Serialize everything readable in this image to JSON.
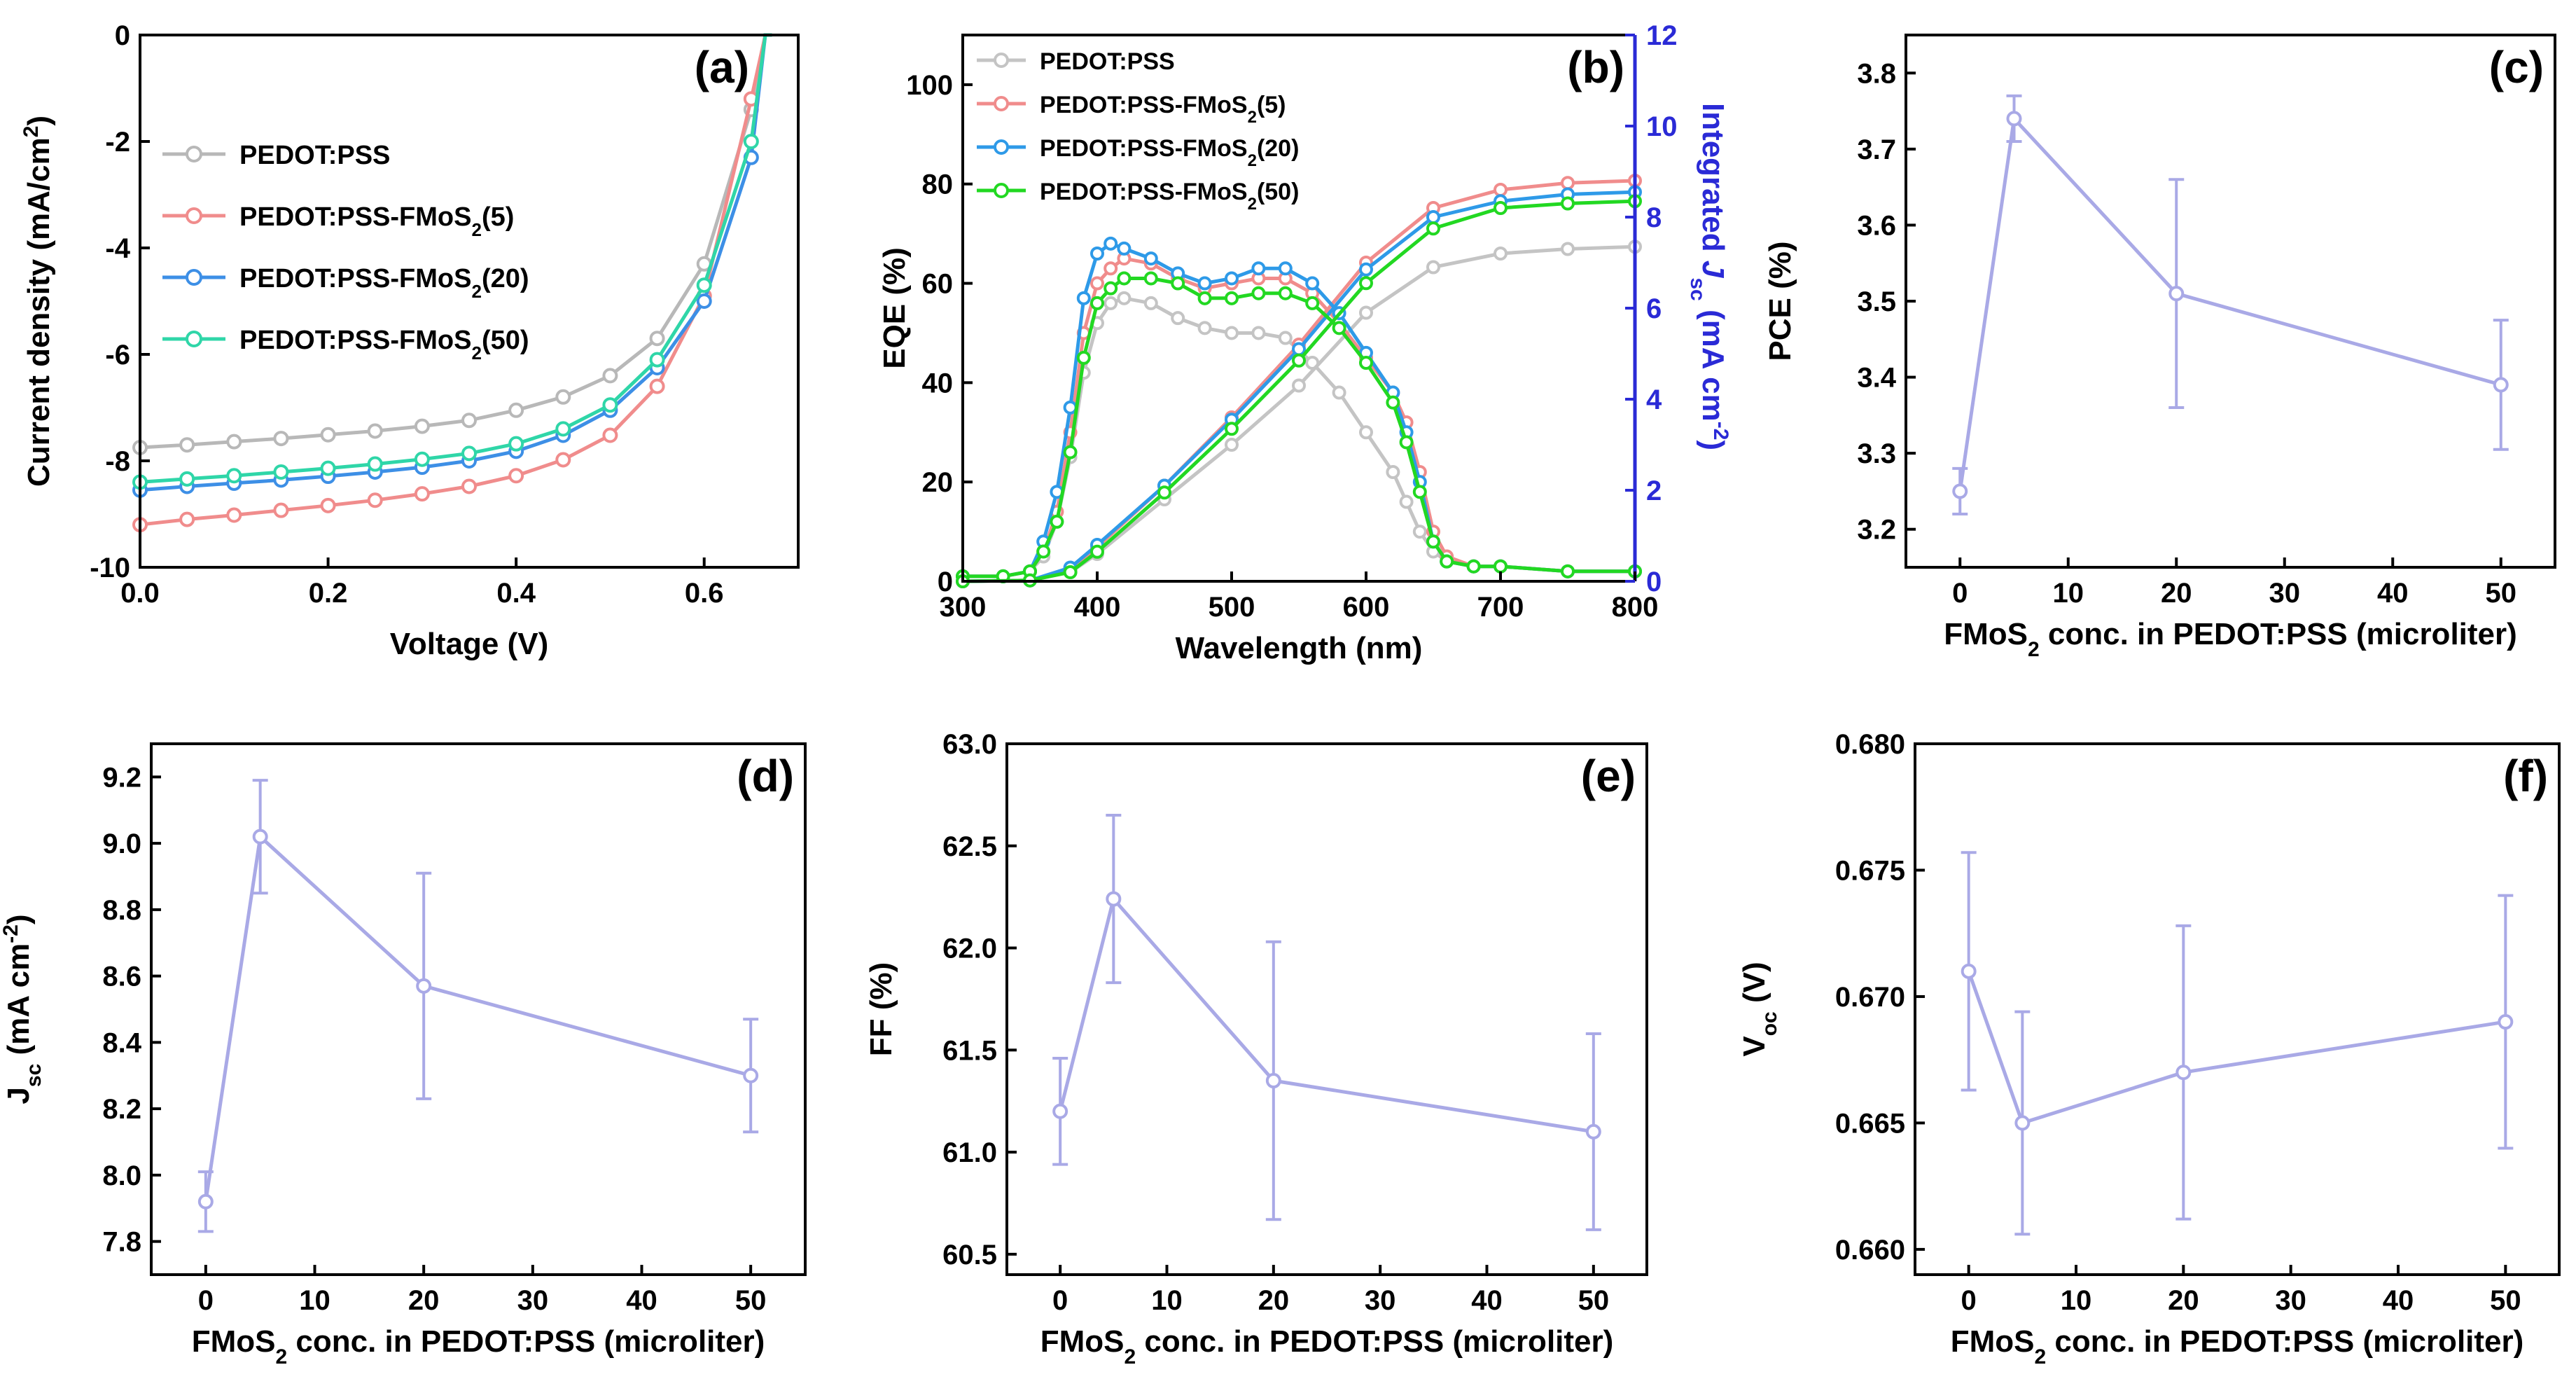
{
  "chart_data": [
    {
      "id": "a",
      "type": "line",
      "panel_label": "(a)",
      "xlabel": "Voltage (V)",
      "ylabel": "Current density (mA/cm²)",
      "xlim": [
        0,
        0.7
      ],
      "ylim": [
        -10,
        0
      ],
      "xticks": [
        0.0,
        0.2,
        0.4,
        0.6
      ],
      "xtick_labels": [
        "0.0",
        "0.2",
        "0.4",
        "0.6"
      ],
      "yticks": [
        -10,
        -8,
        -6,
        -4,
        -2,
        0
      ],
      "ytick_labels": [
        "-10",
        "-8",
        "-6",
        "-4",
        "-2",
        "0"
      ],
      "legend_position": "upper-left",
      "x": [
        0.0,
        0.05,
        0.1,
        0.15,
        0.2,
        0.25,
        0.3,
        0.35,
        0.4,
        0.45,
        0.5,
        0.55,
        0.6,
        0.65
      ],
      "series": [
        {
          "name": "PEDOT:PSS",
          "name_main": "PEDOT:PSS",
          "name_sub": "",
          "name_tail": "",
          "color": "#b8b8b8",
          "values": [
            -7.75,
            -7.7,
            -7.64,
            -7.58,
            -7.51,
            -7.44,
            -7.35,
            -7.24,
            -7.05,
            -6.8,
            -6.4,
            -5.7,
            -4.3,
            -1.4
          ]
        },
        {
          "name": "PEDOT:PSS-FMoS2(5)",
          "name_main": "PEDOT:PSS-FMoS",
          "name_sub": "2",
          "name_tail": "(5)",
          "color": "#f08c8c",
          "values": [
            -9.2,
            -9.1,
            -9.02,
            -8.93,
            -8.84,
            -8.74,
            -8.62,
            -8.48,
            -8.28,
            -7.98,
            -7.52,
            -6.6,
            -4.9,
            -1.2
          ]
        },
        {
          "name": "PEDOT:PSS-FMoS2(20)",
          "name_main": "PEDOT:PSS-FMoS",
          "name_sub": "2",
          "name_tail": "(20)",
          "color": "#3d8fe6",
          "values": [
            -8.55,
            -8.48,
            -8.42,
            -8.36,
            -8.29,
            -8.21,
            -8.12,
            -8.0,
            -7.82,
            -7.52,
            -7.05,
            -6.25,
            -5.0,
            -2.3
          ]
        },
        {
          "name": "PEDOT:PSS-FMoS2(50)",
          "name_main": "PEDOT:PSS-FMoS",
          "name_sub": "2",
          "name_tail": "(50)",
          "color": "#2fd6a8",
          "values": [
            -8.4,
            -8.34,
            -8.28,
            -8.21,
            -8.14,
            -8.06,
            -7.97,
            -7.86,
            -7.68,
            -7.4,
            -6.95,
            -6.1,
            -4.7,
            -2.0
          ]
        }
      ]
    },
    {
      "id": "b",
      "type": "line",
      "panel_label": "(b)",
      "xlabel": "Wavelength (nm)",
      "ylabel": "EQE (%)",
      "y2label": "Integrated J_sc (mA cm⁻²)",
      "y2label_parts": {
        "pre": "Integrated ",
        "j": "J",
        "sub": "sc",
        "post": " (mA cm",
        "sup": "-2",
        "close": ")"
      },
      "xlim": [
        300,
        800
      ],
      "ylim": [
        0,
        110
      ],
      "y2lim": [
        0,
        12
      ],
      "xticks": [
        300,
        400,
        500,
        600,
        700,
        800
      ],
      "xtick_labels": [
        "300",
        "400",
        "500",
        "600",
        "700",
        "800"
      ],
      "yticks": [
        0,
        20,
        40,
        60,
        80,
        100
      ],
      "ytick_labels": [
        "0",
        "20",
        "40",
        "60",
        "80",
        "100"
      ],
      "y2ticks": [
        0,
        2,
        4,
        6,
        8,
        10,
        12
      ],
      "y2tick_labels": [
        "0",
        "2",
        "4",
        "6",
        "8",
        "10",
        "12"
      ],
      "legend_position": "top-left",
      "series": [
        {
          "name": "PEDOT:PSS",
          "name_main": "PEDOT:PSS",
          "name_sub": "",
          "name_tail": "",
          "color": "#c4c4c4",
          "eqe_x": [
            300,
            330,
            350,
            360,
            370,
            380,
            390,
            400,
            410,
            420,
            440,
            460,
            480,
            500,
            520,
            540,
            560,
            580,
            600,
            620,
            630,
            640,
            650,
            660,
            680,
            700,
            750,
            800
          ],
          "eqe_y": [
            1,
            1,
            2,
            5,
            12,
            25,
            42,
            52,
            56,
            57,
            56,
            53,
            51,
            50,
            50,
            49,
            44,
            38,
            30,
            22,
            16,
            10,
            6,
            4,
            3,
            3,
            2,
            2
          ],
          "jsc_x": [
            300,
            350,
            380,
            400,
            450,
            500,
            550,
            600,
            650,
            700,
            750,
            800
          ],
          "jsc_y": [
            0,
            0.02,
            0.2,
            0.6,
            1.8,
            3.0,
            4.3,
            5.9,
            6.9,
            7.2,
            7.3,
            7.35
          ]
        },
        {
          "name": "PEDOT:PSS-FMoS2(5)",
          "name_main": "PEDOT:PSS-FMoS",
          "name_sub": "2",
          "name_tail": "(5)",
          "color": "#f08c8c",
          "eqe_x": [
            300,
            330,
            350,
            360,
            370,
            380,
            390,
            400,
            410,
            420,
            440,
            460,
            480,
            500,
            520,
            540,
            560,
            580,
            600,
            620,
            630,
            640,
            650,
            660,
            680,
            700,
            750,
            800
          ],
          "eqe_y": [
            1,
            1,
            2,
            6,
            14,
            30,
            50,
            60,
            63,
            65,
            64,
            61,
            59,
            60,
            61,
            61,
            58,
            52,
            45,
            38,
            32,
            22,
            10,
            5,
            3,
            3,
            2,
            2
          ],
          "jsc_x": [
            300,
            350,
            380,
            400,
            450,
            500,
            550,
            600,
            650,
            700,
            750,
            800
          ],
          "jsc_y": [
            0,
            0.02,
            0.25,
            0.75,
            2.1,
            3.6,
            5.2,
            7.0,
            8.2,
            8.6,
            8.75,
            8.8
          ]
        },
        {
          "name": "PEDOT:PSS-FMoS2(20)",
          "name_main": "PEDOT:PSS-FMoS",
          "name_sub": "2",
          "name_tail": "(20)",
          "color": "#2e9ae8",
          "eqe_x": [
            300,
            330,
            350,
            360,
            370,
            380,
            390,
            400,
            410,
            420,
            440,
            460,
            480,
            500,
            520,
            540,
            560,
            580,
            600,
            620,
            630,
            640,
            650,
            660,
            680,
            700,
            750,
            800
          ],
          "eqe_y": [
            1,
            1,
            2,
            8,
            18,
            35,
            57,
            66,
            68,
            67,
            65,
            62,
            60,
            61,
            63,
            63,
            60,
            54,
            46,
            38,
            30,
            20,
            8,
            4,
            3,
            3,
            2,
            2
          ],
          "jsc_x": [
            300,
            350,
            380,
            400,
            450,
            500,
            550,
            600,
            650,
            700,
            750,
            800
          ],
          "jsc_y": [
            0,
            0.02,
            0.3,
            0.8,
            2.1,
            3.55,
            5.1,
            6.85,
            8.0,
            8.35,
            8.5,
            8.55
          ]
        },
        {
          "name": "PEDOT:PSS-FMoS2(50)",
          "name_main": "PEDOT:PSS-FMoS",
          "name_sub": "2",
          "name_tail": "(50)",
          "color": "#22d822",
          "eqe_x": [
            300,
            330,
            350,
            360,
            370,
            380,
            390,
            400,
            410,
            420,
            440,
            460,
            480,
            500,
            520,
            540,
            560,
            580,
            600,
            620,
            630,
            640,
            650,
            660,
            680,
            700,
            750,
            800
          ],
          "eqe_y": [
            1,
            1,
            2,
            6,
            12,
            26,
            45,
            56,
            59,
            61,
            61,
            60,
            57,
            57,
            58,
            58,
            56,
            51,
            44,
            36,
            28,
            18,
            8,
            4,
            3,
            3,
            2,
            2
          ],
          "jsc_x": [
            300,
            350,
            380,
            400,
            450,
            500,
            550,
            600,
            650,
            700,
            750,
            800
          ],
          "jsc_y": [
            0,
            0.02,
            0.2,
            0.65,
            1.95,
            3.35,
            4.85,
            6.55,
            7.75,
            8.2,
            8.3,
            8.35
          ]
        }
      ]
    },
    {
      "id": "c",
      "type": "line",
      "panel_label": "(c)",
      "xlabel": "FMoS2 conc. in PEDOT:PSS (microliter)",
      "xlabel_parts": {
        "pre": "FMoS",
        "sub": "2",
        "post": " conc. in PEDOT:PSS (microliter)"
      },
      "ylabel": "PCE (%)",
      "xlim": [
        -5,
        55
      ],
      "ylim": [
        3.15,
        3.85
      ],
      "xticks": [
        0,
        10,
        20,
        30,
        40,
        50
      ],
      "xtick_labels": [
        "0",
        "10",
        "20",
        "30",
        "40",
        "50"
      ],
      "yticks": [
        3.2,
        3.3,
        3.4,
        3.5,
        3.6,
        3.7,
        3.8
      ],
      "ytick_labels": [
        "3.2",
        "3.3",
        "3.4",
        "3.5",
        "3.6",
        "3.7",
        "3.8"
      ],
      "color": "#a9a9e6",
      "x": [
        0,
        5,
        20,
        50
      ],
      "values": [
        3.25,
        3.74,
        3.51,
        3.39
      ],
      "errors": [
        0.03,
        0.03,
        0.15,
        0.085
      ]
    },
    {
      "id": "d",
      "type": "line",
      "panel_label": "(d)",
      "xlabel": "FMoS2 conc. in PEDOT:PSS (microliter)",
      "xlabel_parts": {
        "pre": "FMoS",
        "sub": "2",
        "post": " conc. in PEDOT:PSS (microliter)"
      },
      "ylabel": "Jsc (mA cm-2)",
      "ylabel_parts": {
        "j": "J",
        "sub": "sc",
        "post": " (mA cm",
        "sup": "-2",
        "close": ")"
      },
      "xlim": [
        -5,
        55
      ],
      "ylim": [
        7.7,
        9.3
      ],
      "xticks": [
        0,
        10,
        20,
        30,
        40,
        50
      ],
      "xtick_labels": [
        "0",
        "10",
        "20",
        "30",
        "40",
        "50"
      ],
      "yticks": [
        7.8,
        8.0,
        8.2,
        8.4,
        8.6,
        8.8,
        9.0,
        9.2
      ],
      "ytick_labels": [
        "7.8",
        "8.0",
        "8.2",
        "8.4",
        "8.6",
        "8.8",
        "9.0",
        "9.2"
      ],
      "color": "#a9a9e6",
      "x": [
        0,
        5,
        20,
        50
      ],
      "values": [
        7.92,
        9.02,
        8.57,
        8.3
      ],
      "errors": [
        0.09,
        0.17,
        0.34,
        0.17
      ]
    },
    {
      "id": "e",
      "type": "line",
      "panel_label": "(e)",
      "xlabel": "FMoS2 conc. in PEDOT:PSS (microliter)",
      "xlabel_parts": {
        "pre": "FMoS",
        "sub": "2",
        "post": " conc. in PEDOT:PSS (microliter)"
      },
      "ylabel": "FF (%)",
      "xlim": [
        -5,
        55
      ],
      "ylim": [
        60.4,
        63.0
      ],
      "xticks": [
        0,
        10,
        20,
        30,
        40,
        50
      ],
      "xtick_labels": [
        "0",
        "10",
        "20",
        "30",
        "40",
        "50"
      ],
      "yticks": [
        60.5,
        61.0,
        61.5,
        62.0,
        62.5,
        63.0
      ],
      "ytick_labels": [
        "60.5",
        "61.0",
        "61.5",
        "62.0",
        "62.5",
        "63.0"
      ],
      "color": "#a9a9e6",
      "x": [
        0,
        5,
        20,
        50
      ],
      "values": [
        61.2,
        62.24,
        61.35,
        61.1
      ],
      "errors": [
        0.26,
        0.41,
        0.68,
        0.48
      ]
    },
    {
      "id": "f",
      "type": "line",
      "panel_label": "(f)",
      "xlabel": "FMoS2 conc. in PEDOT:PSS (microliter)",
      "xlabel_parts": {
        "pre": "FMoS",
        "sub": "2",
        "post": " conc. in PEDOT:PSS (microliter)"
      },
      "ylabel": "Voc (V)",
      "ylabel_parts": {
        "j": "V",
        "sub": "oc",
        "post": " (V)",
        "sup": "",
        "close": ""
      },
      "xlim": [
        -5,
        55
      ],
      "ylim": [
        0.659,
        0.68
      ],
      "xticks": [
        0,
        10,
        20,
        30,
        40,
        50
      ],
      "xtick_labels": [
        "0",
        "10",
        "20",
        "30",
        "40",
        "50"
      ],
      "yticks": [
        0.66,
        0.665,
        0.67,
        0.675,
        0.68
      ],
      "ytick_labels": [
        "0.660",
        "0.665",
        "0.670",
        "0.675",
        "0.680"
      ],
      "color": "#a9a9e6",
      "x": [
        0,
        5,
        20,
        50
      ],
      "values": [
        0.671,
        0.665,
        0.667,
        0.669
      ],
      "errors": [
        0.0047,
        0.0044,
        0.0058,
        0.005
      ]
    }
  ]
}
